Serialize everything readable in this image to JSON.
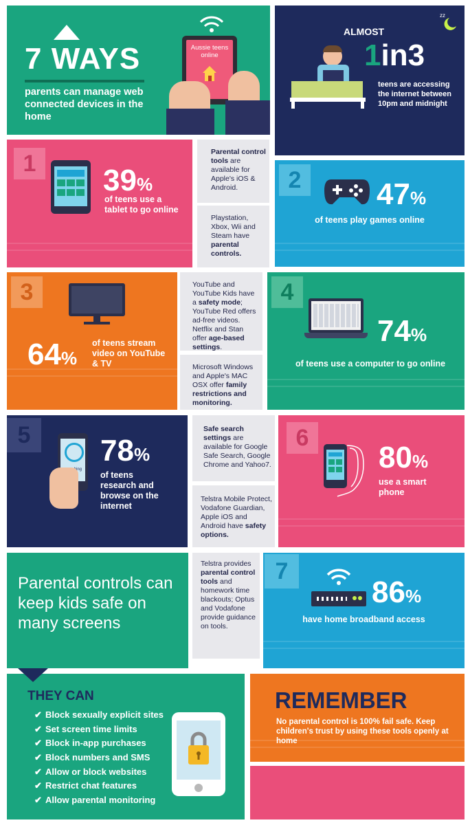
{
  "header": {
    "title": "7 WAYS",
    "subtitle": "parents can manage web connected devices in the home",
    "tablet_screen_text": "Aussie teens online"
  },
  "almost": {
    "prefix": "ALMOST",
    "big_1": "1",
    "big_in3": "in3",
    "text": "teens are accessing the internet between 10pm and midnight",
    "sleep_icon": "zzz-moon-icon"
  },
  "items": [
    {
      "number": "1",
      "value": 39,
      "percent": "39",
      "symbol": "%",
      "caption": "of teens use a tablet to go online",
      "icon": "tablet-icon"
    },
    {
      "number": "2",
      "value": 47,
      "percent": "47",
      "symbol": "%",
      "caption": "of teens play games online",
      "icon": "gamepad-icon"
    },
    {
      "number": "3",
      "value": 64,
      "percent": "64",
      "symbol": "%",
      "caption": "of teens stream video on YouTube & TV",
      "icon": "tv-icon"
    },
    {
      "number": "4",
      "value": 74,
      "percent": "74",
      "symbol": "%",
      "caption": "of teens use a computer to go online",
      "icon": "laptop-icon"
    },
    {
      "number": "5",
      "value": 78,
      "percent": "78",
      "symbol": "%",
      "caption": "of teens research and browse on the internet",
      "icon": "phone-search-icon",
      "phone_text": "searching"
    },
    {
      "number": "6",
      "value": 80,
      "percent": "80",
      "symbol": "%",
      "caption": "use a smart phone",
      "icon": "smartphone-icon"
    },
    {
      "number": "7",
      "value": 86,
      "percent": "86",
      "symbol": "%",
      "caption": "have home broadband access",
      "icon": "router-icon"
    }
  ],
  "notes": {
    "n1a_bold": "Parental control tools",
    "n1a_rest": " are available for Apple's iOS & Android.",
    "n1b_plain": "Playstation, Xbox, Wii and Steam have ",
    "n1b_bold": "parental controls.",
    "n3a_plain1": "YouTube and YouTube Kids have a ",
    "n3a_bold1": "safety mode",
    "n3a_plain2": "; YouTube Red offers ad-free videos. Netflix and Stan offer ",
    "n3a_bold2": "age-based settings",
    "n3a_plain3": ".",
    "n3b_plain": "Microsoft Windows and Apple's MAC OSX offer ",
    "n3b_bold": "family restrictions and monitoring.",
    "n5a_bold": "Safe search settings",
    "n5a_rest": " are available for Google Safe Search, Google Chrome and Yahoo7.",
    "n5b_plain": "Telstra Mobile Protect, Vodafone Guardian, Apple iOS and Android have ",
    "n5b_bold": "safety options.",
    "n7_plain1": "Telstra provides ",
    "n7_bold": "parental control tools",
    "n7_plain2": " and homework time blackouts; Optus and Vodafone provide guidance on tools."
  },
  "parental_text": "Parental controls can keep kids safe on many screens",
  "they_can": {
    "title": "THEY CAN",
    "items": [
      "Block sexually explicit sites",
      "Set screen time limits",
      "Block in-app purchases",
      "Block numbers and SMS",
      "Allow or block websites",
      "Restrict chat features",
      "Allow parental monitoring"
    ],
    "check_icon": "check-icon",
    "lock_icon": "padlock-icon"
  },
  "remember": {
    "title": "REMEMBER",
    "text": "No parental control is 100% fail safe. Keep children's trust by using these tools openly at home"
  },
  "colors": {
    "green": "#1aa57f",
    "navy": "#1e2a5c",
    "pink": "#ea4e7a",
    "blue": "#1fa4d4",
    "orange": "#ee7620",
    "grey": "#e8e8ec"
  }
}
